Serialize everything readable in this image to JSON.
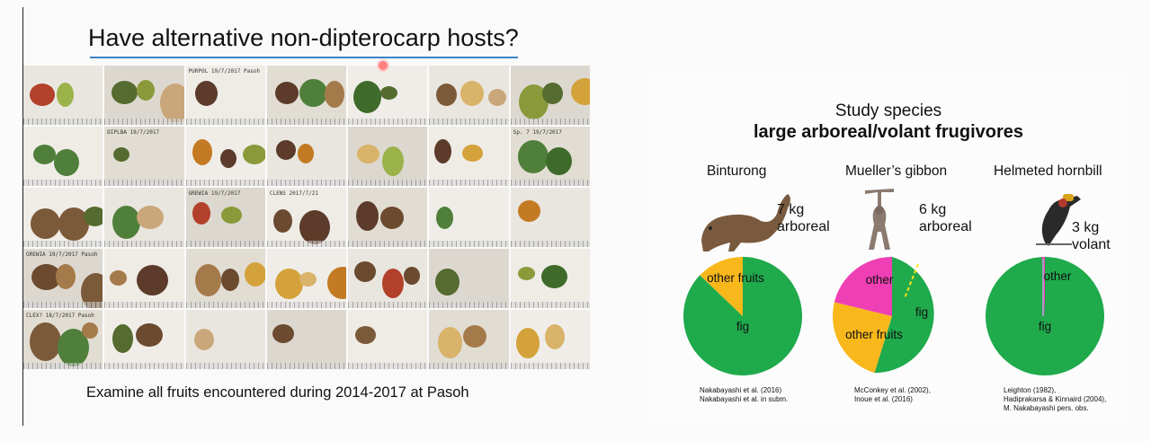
{
  "left_slide": {
    "title": "Have alternative non-dipterocarp hosts?",
    "caption": "Examine all fruits encountered during 2014-2017 at Pasoh",
    "specimen_labels": [
      "PURPOL 19/7/2017 Pasoh",
      "DIPLBA 19/7/2017",
      "GREWIA 19/7/2017",
      "GREWIA 19/7/2017 Pasoh",
      "CLENS 2017/7/21",
      "Sp. 7 19/7/2017",
      "CLEX? 18/7/2017 Pasoh"
    ]
  },
  "right_slide": {
    "title_line1": "Study species",
    "title_line2": "large arboreal/volant frugivores",
    "species": [
      {
        "name": "Binturong",
        "weight": "7 kg",
        "mode": "arboreal",
        "pie_labels": [
          "other fruits",
          "fig"
        ],
        "refs": [
          "Nakabayashi et al. (2016)",
          "Nakabayashi et al. in subm."
        ]
      },
      {
        "name": "Mueller’s gibbon",
        "weight": "6 kg",
        "mode": "arboreal",
        "pie_labels": [
          "other",
          "fig",
          "other fruits"
        ],
        "refs": [
          "McConkey et al. (2002),",
          "Inoue et al. (2016)"
        ]
      },
      {
        "name": "Helmeted hornbill",
        "weight": "3 kg",
        "mode": "volant",
        "pie_labels": [
          "other",
          "fig"
        ],
        "refs": [
          "Leighton (1982),",
          "Hadiprakarsa & Kinnaird (2004),",
          "M. Nakabayashi pers. obs."
        ]
      }
    ],
    "colors": {
      "fig": "#1faa4c",
      "other_fruits": "#f8b81b",
      "other": "#ee3fb4"
    }
  }
}
